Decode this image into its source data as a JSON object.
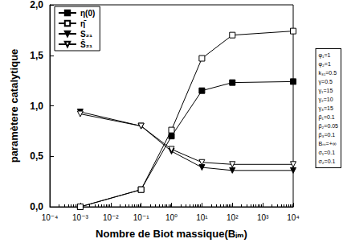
{
  "chart_data": {
    "type": "line",
    "x_label": "Nombre de Biot massique(Bᵢₘ)",
    "y_label": "paramètere catalytique",
    "log": "x",
    "grid": false,
    "legend": "upper left",
    "xlim": [
      0.0001,
      10000
    ],
    "xticks": [
      {
        "value": 0.0001,
        "label": "10⁻⁴"
      },
      {
        "value": 0.001,
        "label": "10⁻³"
      },
      {
        "value": 0.01,
        "label": "10⁻²"
      },
      {
        "value": 0.1,
        "label": "10⁻¹"
      },
      {
        "value": 1,
        "label": "10⁰"
      },
      {
        "value": 10,
        "label": "10¹"
      },
      {
        "value": 100,
        "label": "10²"
      },
      {
        "value": 1000,
        "label": "10³"
      },
      {
        "value": 10000,
        "label": "10⁴"
      }
    ],
    "ylim": [
      0,
      2
    ],
    "yticks": [
      {
        "value": 0,
        "label": "0,0"
      },
      {
        "value": 0.5,
        "label": "0,5"
      },
      {
        "value": 1,
        "label": "1,0"
      },
      {
        "value": 1.5,
        "label": "1,5"
      },
      {
        "value": 2,
        "label": "2,0"
      }
    ],
    "x": [
      0.001,
      0.1,
      1,
      10,
      100,
      10000
    ],
    "series": [
      {
        "name": "η(0)",
        "color": "#000000",
        "marker": "square",
        "values": [
          0.0,
          0.17,
          0.7,
          1.15,
          1.23,
          1.24
        ]
      },
      {
        "name": "η̄",
        "color": "#000000",
        "marker": "open-square",
        "values": [
          0.0,
          0.17,
          0.76,
          1.47,
          1.7,
          1.74
        ]
      },
      {
        "name": "S₂₁",
        "color": "#000000",
        "marker": "down-triangle",
        "values": [
          0.94,
          0.8,
          0.55,
          0.39,
          0.36,
          0.36
        ]
      },
      {
        "name": "S̄₂₁",
        "color": "#000000",
        "marker": "open-down-triangle",
        "values": [
          0.92,
          0.8,
          0.57,
          0.44,
          0.42,
          0.42
        ]
      }
    ],
    "annotations": [
      "φ₁=1",
      "φ₂=1",
      "k₃₁=0.5",
      "γ=0.5",
      "γ₁=15",
      "γ₂=10",
      "γ₃=15",
      "β₁=0.1",
      "β₂=0.05",
      "β₃=0.1",
      "Bₘ=+∞",
      "σ₁=0.1",
      "σ₂=0.1"
    ]
  }
}
